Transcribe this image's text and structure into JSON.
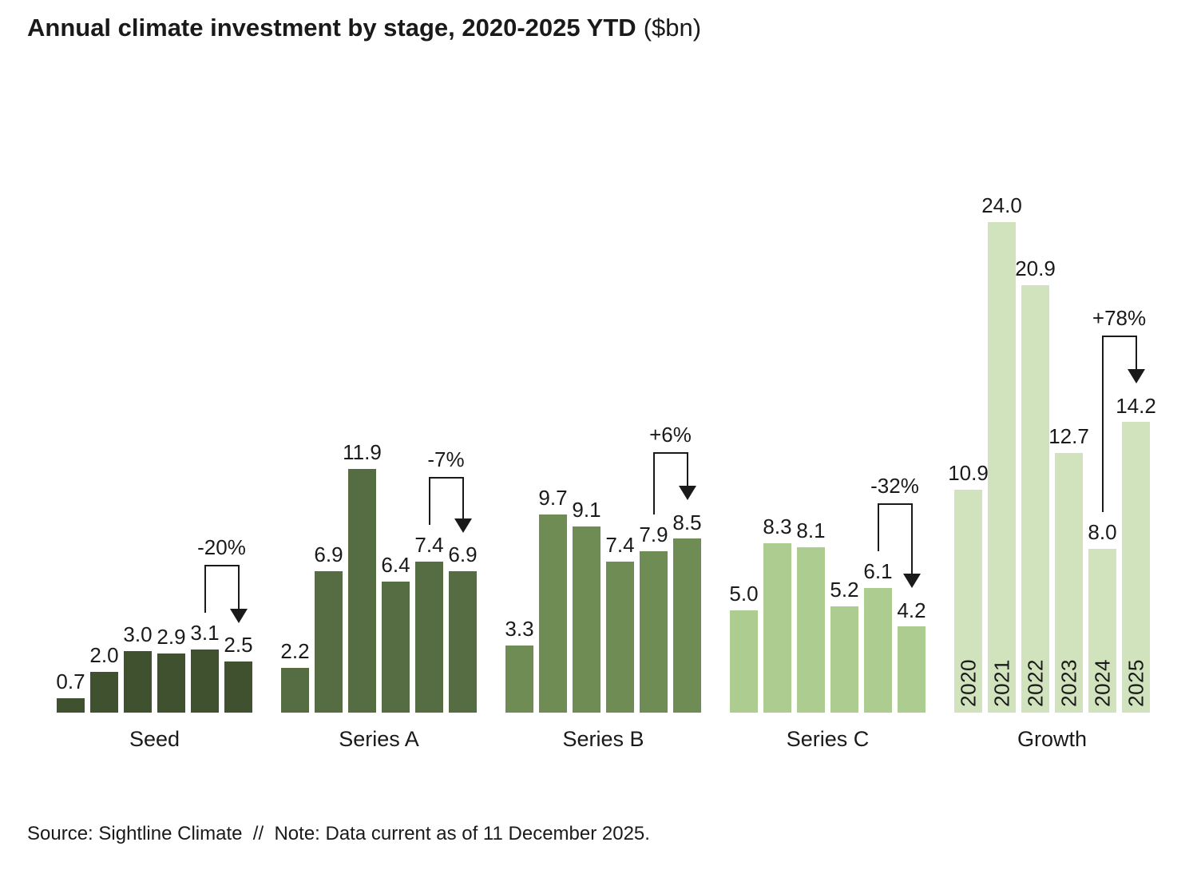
{
  "title": {
    "main": "Annual climate investment by stage, 2020-2025 YTD",
    "unit": "($bn)"
  },
  "source_note": "Source: Sightline Climate  //  Note: Data current as of 11 December 2025.",
  "chart_data": {
    "type": "bar",
    "title": "Annual climate investment by stage, 2020-2025 YTD ($bn)",
    "unit": "$bn",
    "grid": false,
    "categories": [
      "2020",
      "2021",
      "2022",
      "2023",
      "2024",
      "2025"
    ],
    "value_label_format": "one_decimal",
    "series": [
      {
        "name": "Seed",
        "color": "#405130",
        "values": [
          0.7,
          2.0,
          3.0,
          2.9,
          3.1,
          2.5
        ],
        "yoy_change_label": "-20%"
      },
      {
        "name": "Series A",
        "color": "#566D44",
        "values": [
          2.2,
          6.9,
          11.9,
          6.4,
          7.4,
          6.9
        ],
        "yoy_change_label": "-7%"
      },
      {
        "name": "Series B",
        "color": "#6F8C55",
        "values": [
          3.3,
          9.7,
          9.1,
          7.4,
          7.9,
          8.5
        ],
        "yoy_change_label": "+6%"
      },
      {
        "name": "Series C",
        "color": "#ADCC8F",
        "values": [
          5.0,
          8.3,
          8.1,
          5.2,
          6.1,
          4.2
        ],
        "yoy_change_label": "-32%"
      },
      {
        "name": "Growth",
        "color": "#D1E3BD",
        "values": [
          10.9,
          24.0,
          20.9,
          12.7,
          8.0,
          14.2
        ],
        "yoy_change_label": "+78%",
        "show_year_labels": true
      }
    ],
    "annotation_meaning": "percent change from 2024 to 2025 YTD",
    "ylim": [
      0,
      24
    ]
  }
}
